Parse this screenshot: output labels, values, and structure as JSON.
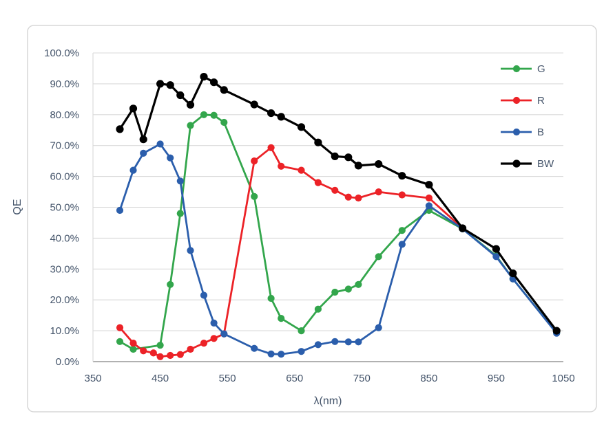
{
  "chart_data": {
    "type": "line",
    "title": "",
    "xlabel": "λ(nm)",
    "ylabel": "QE",
    "xlim": [
      350,
      1050
    ],
    "ylim": [
      0,
      100
    ],
    "grid": "horizontal-only",
    "legend_position": "inside-top-right",
    "x_ticks": [
      350,
      450,
      550,
      650,
      750,
      850,
      950,
      1050
    ],
    "x_tick_labels": [
      "350",
      "450",
      "550",
      "650",
      "750",
      "850",
      "950",
      "1050"
    ],
    "y_ticks": [
      0,
      10,
      20,
      30,
      40,
      50,
      60,
      70,
      80,
      90,
      100
    ],
    "y_tick_labels": [
      "0.0%",
      "10.0%",
      "20.0%",
      "30.0%",
      "40.0%",
      "50.0%",
      "60.0%",
      "70.0%",
      "80.0%",
      "90.0%",
      "100.0%"
    ],
    "series": [
      {
        "name": "G",
        "color": "#33A64C",
        "points": [
          [
            390,
            6.5
          ],
          [
            410,
            4.0
          ],
          [
            450,
            5.3
          ],
          [
            465,
            25.0
          ],
          [
            480,
            48.0
          ],
          [
            495,
            76.5
          ],
          [
            515,
            80.0
          ],
          [
            530,
            79.8
          ],
          [
            545,
            77.5
          ],
          [
            590,
            53.5
          ],
          [
            615,
            20.5
          ],
          [
            630,
            14.0
          ],
          [
            660,
            10.0
          ],
          [
            685,
            17.0
          ],
          [
            710,
            22.5
          ],
          [
            730,
            23.5
          ],
          [
            745,
            25.0
          ],
          [
            775,
            34.0
          ],
          [
            810,
            42.5
          ],
          [
            850,
            49.0
          ],
          [
            900,
            43.0
          ],
          [
            950,
            34.3
          ],
          [
            975,
            26.8
          ],
          [
            1040,
            9.3
          ]
        ]
      },
      {
        "name": "R",
        "color": "#EC2227",
        "points": [
          [
            390,
            11.0
          ],
          [
            410,
            6.0
          ],
          [
            425,
            3.5
          ],
          [
            440,
            2.8
          ],
          [
            450,
            1.6
          ],
          [
            465,
            2.0
          ],
          [
            480,
            2.3
          ],
          [
            495,
            4.0
          ],
          [
            515,
            6.0
          ],
          [
            530,
            7.5
          ],
          [
            545,
            9.0
          ],
          [
            590,
            65.0
          ],
          [
            615,
            69.3
          ],
          [
            630,
            63.3
          ],
          [
            660,
            62.0
          ],
          [
            685,
            58.0
          ],
          [
            710,
            55.5
          ],
          [
            730,
            53.3
          ],
          [
            745,
            53.0
          ],
          [
            775,
            55.0
          ],
          [
            810,
            54.0
          ],
          [
            850,
            53.0
          ],
          [
            900,
            43.2
          ]
        ]
      },
      {
        "name": "B",
        "color": "#2B5EAC",
        "points": [
          [
            390,
            49.0
          ],
          [
            410,
            62.0
          ],
          [
            425,
            67.5
          ],
          [
            450,
            70.5
          ],
          [
            465,
            66.0
          ],
          [
            480,
            58.5
          ],
          [
            495,
            36.0
          ],
          [
            515,
            21.5
          ],
          [
            530,
            12.5
          ],
          [
            545,
            9.0
          ],
          [
            590,
            4.3
          ],
          [
            615,
            2.5
          ],
          [
            630,
            2.4
          ],
          [
            660,
            3.3
          ],
          [
            685,
            5.5
          ],
          [
            710,
            6.5
          ],
          [
            730,
            6.4
          ],
          [
            745,
            6.4
          ],
          [
            775,
            11.0
          ],
          [
            810,
            38.0
          ],
          [
            850,
            50.5
          ],
          [
            900,
            43.0
          ],
          [
            950,
            34.0
          ],
          [
            975,
            26.8
          ],
          [
            1040,
            9.2
          ]
        ]
      },
      {
        "name": "BW",
        "color": "#000000",
        "points": [
          [
            390,
            75.3
          ],
          [
            410,
            82.0
          ],
          [
            425,
            72.0
          ],
          [
            450,
            90.0
          ],
          [
            465,
            89.6
          ],
          [
            480,
            86.3
          ],
          [
            495,
            83.2
          ],
          [
            515,
            92.3
          ],
          [
            530,
            90.5
          ],
          [
            545,
            88.0
          ],
          [
            590,
            83.3
          ],
          [
            615,
            80.5
          ],
          [
            630,
            79.3
          ],
          [
            660,
            76.0
          ],
          [
            685,
            71.0
          ],
          [
            710,
            66.5
          ],
          [
            730,
            66.2
          ],
          [
            745,
            63.5
          ],
          [
            775,
            64.0
          ],
          [
            810,
            60.2
          ],
          [
            850,
            57.3
          ],
          [
            900,
            43.2
          ],
          [
            950,
            36.5
          ],
          [
            975,
            28.6
          ],
          [
            1040,
            10.0
          ]
        ]
      }
    ],
    "style_colors": {
      "tick_text": "#44546A",
      "gridline": "#D9D9D9",
      "x_axis_line": "#A6A6A6",
      "y_axis_line": "#D9D9D9",
      "outer_border": "#D7D7D7",
      "background": "#FFFFFF"
    }
  }
}
